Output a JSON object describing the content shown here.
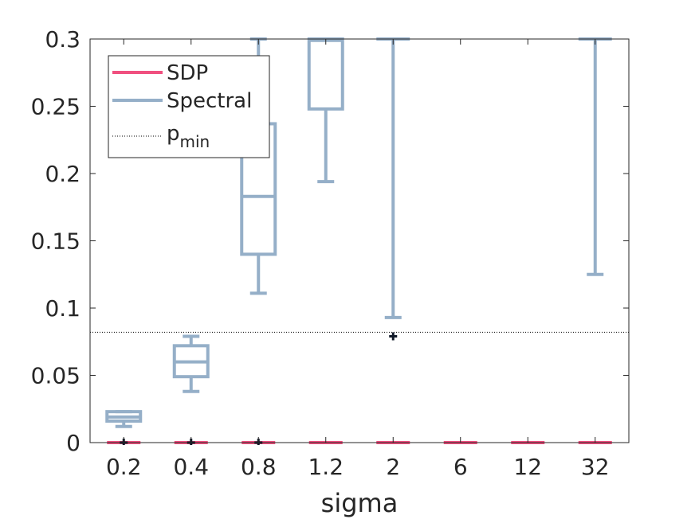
{
  "chart_data": {
    "type": "boxplot",
    "title": "",
    "xlabel": "sigma",
    "ylabel": "",
    "categories": [
      "0.2",
      "0.4",
      "0.8",
      "1.2",
      "2",
      "6",
      "12",
      "32"
    ],
    "ylim": [
      0,
      0.3
    ],
    "yticks": [
      0,
      0.05,
      0.1,
      0.15,
      0.2,
      0.25,
      0.3
    ],
    "ytick_labels": [
      "0",
      "0.05",
      "0.1",
      "0.15",
      "0.2",
      "0.25",
      "0.3"
    ],
    "grid": false,
    "legend_position": "top-left",
    "series": [
      {
        "name": "SDP",
        "color": "#f0507f",
        "boxes": [
          {
            "low": 0,
            "q1": 0,
            "median": 0,
            "q3": 0,
            "high": 0
          },
          {
            "low": 0,
            "q1": 0,
            "median": 0,
            "q3": 0,
            "high": 0
          },
          {
            "low": 0,
            "q1": 0,
            "median": 0,
            "q3": 0,
            "high": 0
          },
          {
            "low": 0,
            "q1": 0,
            "median": 0,
            "q3": 0,
            "high": 0
          },
          {
            "low": 0,
            "q1": 0,
            "median": 0,
            "q3": 0,
            "high": 0
          },
          {
            "low": 0,
            "q1": 0,
            "median": 0,
            "q3": 0,
            "high": 0
          },
          {
            "low": 0,
            "q1": 0,
            "median": 0,
            "q3": 0,
            "high": 0
          },
          {
            "low": 0,
            "q1": 0,
            "median": 0,
            "q3": 0,
            "high": 0
          }
        ]
      },
      {
        "name": "Spectral",
        "color": "#95afc8",
        "boxes": [
          {
            "low": 0.012,
            "q1": 0.016,
            "median": 0.019,
            "q3": 0.023,
            "high": 0.023
          },
          {
            "low": 0.038,
            "q1": 0.049,
            "median": 0.06,
            "q3": 0.072,
            "high": 0.079
          },
          {
            "low": 0.111,
            "q1": 0.14,
            "median": 0.183,
            "q3": 0.237,
            "high": 0.3
          },
          {
            "low": 0.194,
            "q1": 0.248,
            "median": 0.299,
            "q3": 0.3,
            "high": 0.3
          },
          {
            "low": 0.093,
            "q1": 0.3,
            "median": 0.3,
            "q3": 0.3,
            "high": 0.3
          },
          null,
          null,
          {
            "low": 0.125,
            "q1": 0.3,
            "median": 0.3,
            "q3": 0.3,
            "high": 0.3
          }
        ]
      }
    ],
    "outliers": [
      {
        "category": "0.2",
        "value": 0
      },
      {
        "category": "0.4",
        "value": 0
      },
      {
        "category": "0.8",
        "value": 0
      },
      {
        "category": "2",
        "value": 0.079
      }
    ],
    "reference_line": {
      "name": "p_min",
      "value": 0.082,
      "style": "dotted",
      "color": "#000000"
    },
    "legend": [
      {
        "label": "SDP",
        "style": "line",
        "color": "#f0507f"
      },
      {
        "label": "Spectral",
        "style": "line",
        "color": "#95afc8"
      },
      {
        "label_main": "p",
        "label_sub": "min",
        "style": "dotted",
        "color": "#000000"
      }
    ]
  }
}
